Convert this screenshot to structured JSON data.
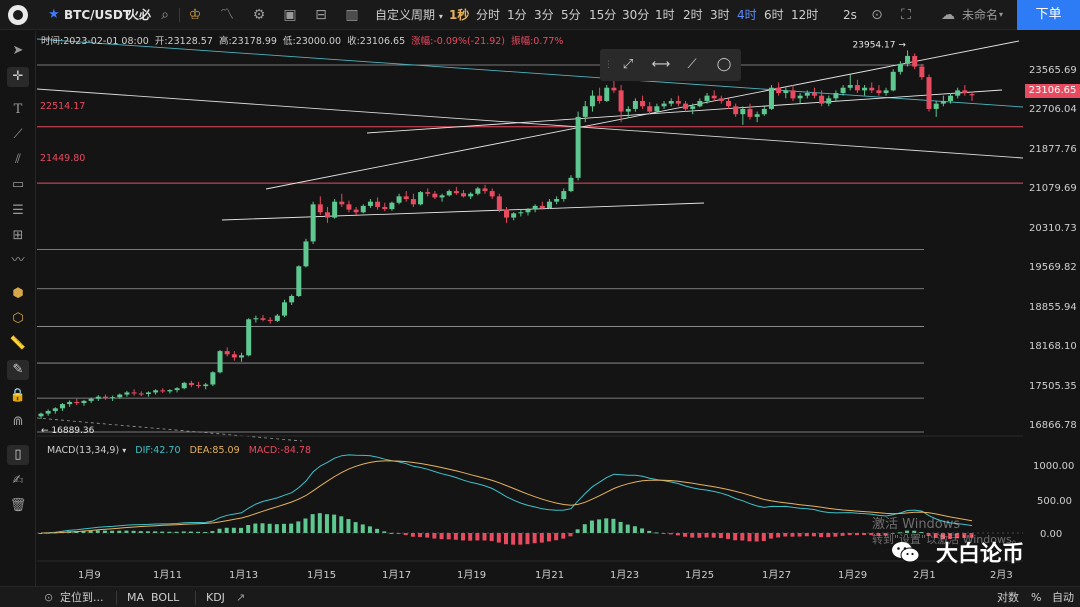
{
  "topbar": {
    "symbol": "BTC/USDT",
    "exchange": "火必",
    "custom_period": "自定义周期",
    "timeframes": [
      "1秒",
      "分时",
      "1分",
      "3分",
      "5分",
      "15分",
      "30分",
      "1时",
      "2时",
      "3时",
      "4时",
      "6时",
      "12时"
    ],
    "active_timeframe": "4时",
    "refresh_interval": "2s",
    "layout_name": "未命名",
    "order_button": "下单"
  },
  "ohlc_info": {
    "time_label": "时间:2023-02-01 08:00",
    "open": "开:23128.57",
    "high": "高:23178.99",
    "low": "低:23000.00",
    "close": "收:23106.65",
    "change": "涨幅:-0.09%(-21.92)",
    "amplitude": "振幅:0.77%"
  },
  "price_axis": {
    "labels": [
      "23565.69",
      "22706.04",
      "21877.76",
      "21079.69",
      "20310.73",
      "19569.82",
      "18855.94",
      "18168.10",
      "17505.35",
      "16866.78"
    ],
    "current_price": "23106.65",
    "macd_labels": [
      "1000.00",
      "500.00",
      "0.00"
    ]
  },
  "annotations": {
    "line_22514": "22514.17",
    "line_21449": "21449.80",
    "peak": "23954.17",
    "low": "16889.36"
  },
  "macd": {
    "label": "MACD(13,34,9)",
    "dif": "DIF:42.70",
    "dea": "DEA:85.09",
    "macd": "MACD:-84.78"
  },
  "x_axis": {
    "labels": [
      "1月9",
      "1月11",
      "1月13",
      "1月15",
      "1月17",
      "1月19",
      "1月21",
      "1月23",
      "1月25",
      "1月27",
      "1月29",
      "2月1",
      "2月3"
    ]
  },
  "bottombar": {
    "locate": "定位到...",
    "ma": "MA",
    "boll": "BOLL",
    "kdj": "KDJ",
    "log": "对数",
    "percent": "%",
    "auto": "自动"
  },
  "watermark": {
    "line1": "激活 Windows",
    "line2": "转到\"设置\"以激活 Windows。",
    "brand": "大白论币"
  },
  "colors": {
    "up": "#5fc790",
    "down": "#e84a5f",
    "accent": "#2d7cf6",
    "dif": "#3fc1c9",
    "dea": "#e6b25e"
  },
  "chart_data": {
    "type": "candlestick",
    "timeframe": "4时",
    "x_labels": [
      "1月9",
      "1月11",
      "1月13",
      "1月15",
      "1月17",
      "1月19",
      "1月21",
      "1月23",
      "1月25",
      "1月27",
      "1月29",
      "2月1",
      "2月3"
    ],
    "price_levels": [
      16866.78,
      17505.35,
      18168.1,
      18855.94,
      19569.82,
      20310.73,
      21079.69,
      21877.76,
      22706.04,
      23565.69
    ],
    "current_price": 23106.65,
    "last_candle": {
      "open": 23128.57,
      "high": 23178.99,
      "low": 23000.0,
      "close": 23106.65
    },
    "marked_high": 23954.17,
    "marked_low": 16889.36,
    "horizontal_lines": [
      22514.17,
      21449.8
    ],
    "candles": [
      [
        17050,
        17120,
        17000,
        17100
      ],
      [
        17100,
        17180,
        17060,
        17150
      ],
      [
        17150,
        17220,
        17100,
        17200
      ],
      [
        17200,
        17300,
        17150,
        17280
      ],
      [
        17280,
        17350,
        17230,
        17320
      ],
      [
        17320,
        17380,
        17260,
        17300
      ],
      [
        17300,
        17360,
        17250,
        17340
      ],
      [
        17340,
        17400,
        17300,
        17380
      ],
      [
        17380,
        17450,
        17340,
        17420
      ],
      [
        17420,
        17460,
        17360,
        17390
      ],
      [
        17390,
        17440,
        17340,
        17410
      ],
      [
        17410,
        17480,
        17380,
        17460
      ],
      [
        17460,
        17530,
        17420,
        17500
      ],
      [
        17500,
        17560,
        17440,
        17480
      ],
      [
        17480,
        17520,
        17430,
        17470
      ],
      [
        17470,
        17520,
        17420,
        17500
      ],
      [
        17500,
        17560,
        17460,
        17540
      ],
      [
        17540,
        17580,
        17490,
        17520
      ],
      [
        17520,
        17560,
        17480,
        17545
      ],
      [
        17545,
        17600,
        17500,
        17580
      ],
      [
        17580,
        17700,
        17560,
        17680
      ],
      [
        17680,
        17720,
        17600,
        17640
      ],
      [
        17640,
        17700,
        17580,
        17620
      ],
      [
        17620,
        17680,
        17560,
        17650
      ],
      [
        17650,
        17900,
        17620,
        17880
      ],
      [
        17880,
        18300,
        17860,
        18280
      ],
      [
        18280,
        18350,
        18180,
        18220
      ],
      [
        18220,
        18280,
        18100,
        18160
      ],
      [
        18160,
        18250,
        18080,
        18200
      ],
      [
        18200,
        18900,
        18180,
        18880
      ],
      [
        18880,
        18950,
        18820,
        18900
      ],
      [
        18900,
        18960,
        18840,
        18870
      ],
      [
        18870,
        18920,
        18800,
        18850
      ],
      [
        18850,
        18980,
        18830,
        18950
      ],
      [
        18950,
        19250,
        18920,
        19200
      ],
      [
        19200,
        19350,
        19150,
        19320
      ],
      [
        19320,
        19900,
        19300,
        19880
      ],
      [
        19880,
        20400,
        19860,
        20350
      ],
      [
        20350,
        21100,
        20300,
        21050
      ],
      [
        21050,
        21200,
        20850,
        20900
      ],
      [
        20900,
        21000,
        20700,
        20800
      ],
      [
        20800,
        21150,
        20780,
        21100
      ],
      [
        21100,
        21250,
        21000,
        21050
      ],
      [
        21050,
        21120,
        20900,
        20950
      ],
      [
        20950,
        21000,
        20850,
        20900
      ],
      [
        20900,
        21050,
        20880,
        21020
      ],
      [
        21020,
        21150,
        20980,
        21100
      ],
      [
        21100,
        21180,
        20950,
        21000
      ],
      [
        21000,
        21080,
        20920,
        20960
      ],
      [
        20960,
        21100,
        20930,
        21080
      ],
      [
        21080,
        21250,
        21050,
        21200
      ],
      [
        21200,
        21300,
        21100,
        21150
      ],
      [
        21150,
        21250,
        21000,
        21050
      ],
      [
        21050,
        21300,
        21030,
        21280
      ],
      [
        21280,
        21350,
        21200,
        21250
      ],
      [
        21250,
        21300,
        21150,
        21180
      ],
      [
        21180,
        21250,
        21100,
        21220
      ],
      [
        21220,
        21330,
        21200,
        21300
      ],
      [
        21300,
        21380,
        21230,
        21260
      ],
      [
        21260,
        21320,
        21180,
        21200
      ],
      [
        21200,
        21280,
        21150,
        21250
      ],
      [
        21250,
        21380,
        21220,
        21350
      ],
      [
        21350,
        21420,
        21250,
        21300
      ],
      [
        21300,
        21350,
        21150,
        21200
      ],
      [
        21200,
        21250,
        20900,
        20950
      ],
      [
        20950,
        21000,
        20700,
        20800
      ],
      [
        20800,
        20900,
        20750,
        20880
      ],
      [
        20880,
        20950,
        20820,
        20900
      ],
      [
        20900,
        20980,
        20840,
        20950
      ],
      [
        20950,
        21050,
        20900,
        21020
      ],
      [
        21020,
        21100,
        20950,
        20980
      ],
      [
        20980,
        21150,
        20960,
        21100
      ],
      [
        21100,
        21200,
        21050,
        21150
      ],
      [
        21150,
        21350,
        21100,
        21300
      ],
      [
        21300,
        21600,
        21280,
        21550
      ],
      [
        21550,
        22800,
        21500,
        22700
      ],
      [
        22700,
        23000,
        22600,
        22900
      ],
      [
        22900,
        23200,
        22800,
        23100
      ],
      [
        23100,
        23250,
        22950,
        23000
      ],
      [
        23000,
        23300,
        22980,
        23250
      ],
      [
        23250,
        23400,
        23150,
        23200
      ],
      [
        23200,
        23300,
        22600,
        22800
      ],
      [
        22800,
        22900,
        22700,
        22850
      ],
      [
        22850,
        23050,
        22800,
        23000
      ],
      [
        23000,
        23100,
        22850,
        22900
      ],
      [
        22900,
        22980,
        22750,
        22800
      ],
      [
        22800,
        22950,
        22780,
        22900
      ],
      [
        22900,
        23000,
        22850,
        22950
      ],
      [
        22950,
        23050,
        22900,
        23000
      ],
      [
        23000,
        23100,
        22900,
        22950
      ],
      [
        22950,
        23000,
        22800,
        22850
      ],
      [
        22850,
        22950,
        22750,
        22900
      ],
      [
        22900,
        23050,
        22880,
        23000
      ],
      [
        23000,
        23150,
        22950,
        23100
      ],
      [
        23100,
        23200,
        23000,
        23050
      ],
      [
        23050,
        23100,
        22950,
        23000
      ],
      [
        23000,
        23050,
        22850,
        22900
      ],
      [
        22900,
        22950,
        22700,
        22750
      ],
      [
        22750,
        22900,
        22550,
        22850
      ],
      [
        22850,
        22950,
        22650,
        22700
      ],
      [
        22700,
        22800,
        22600,
        22750
      ],
      [
        22750,
        22900,
        22720,
        22850
      ],
      [
        22850,
        23300,
        22830,
        23250
      ],
      [
        23250,
        23350,
        23100,
        23150
      ],
      [
        23150,
        23250,
        23050,
        23200
      ],
      [
        23200,
        23300,
        23000,
        23050
      ],
      [
        23050,
        23150,
        22950,
        23100
      ],
      [
        23100,
        23200,
        23050,
        23150
      ],
      [
        23150,
        23250,
        23050,
        23100
      ],
      [
        23100,
        23200,
        22900,
        22950
      ],
      [
        22950,
        23100,
        22900,
        23050
      ],
      [
        23050,
        23200,
        23000,
        23150
      ],
      [
        23150,
        23300,
        23100,
        23250
      ],
      [
        23250,
        23500,
        23200,
        23300
      ],
      [
        23300,
        23400,
        23150,
        23200
      ],
      [
        23200,
        23300,
        23100,
        23250
      ],
      [
        23250,
        23350,
        23150,
        23200
      ],
      [
        23200,
        23300,
        23100,
        23150
      ],
      [
        23150,
        23250,
        23100,
        23200
      ],
      [
        23200,
        23600,
        23180,
        23550
      ],
      [
        23550,
        23750,
        23500,
        23700
      ],
      [
        23700,
        23954,
        23650,
        23850
      ],
      [
        23850,
        23900,
        23600,
        23650
      ],
      [
        23650,
        23700,
        23400,
        23450
      ],
      [
        23450,
        23500,
        22800,
        22850
      ],
      [
        22850,
        23000,
        22700,
        22950
      ],
      [
        22950,
        23100,
        22900,
        23000
      ],
      [
        23000,
        23150,
        22950,
        23100
      ],
      [
        23100,
        23250,
        23050,
        23200
      ],
      [
        23200,
        23300,
        23100,
        23150
      ],
      [
        23128.57,
        23178.99,
        23000,
        23106.65
      ]
    ],
    "macd": {
      "params": [
        13,
        34,
        9
      ],
      "dif_last": 42.7,
      "dea_last": 85.09,
      "macd_last": -84.78,
      "y_labels": [
        1000.0,
        500.0,
        0.0
      ]
    }
  }
}
